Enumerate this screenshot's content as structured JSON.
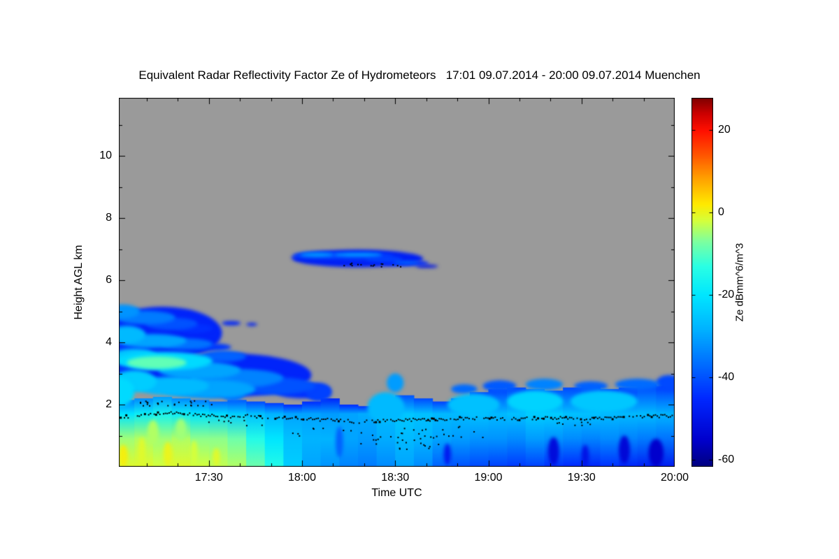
{
  "chart_data": {
    "type": "heatmap",
    "title": "Equivalent Radar Reflectivity Factor Ze of Hydrometeors   17:01 09.07.2014 - 20:00 09.07.2014 Muenchen",
    "location": "Muenchen",
    "time_range": "17:01 09.07.2014 - 20:00 09.07.2014",
    "xlabel": "Time UTC",
    "ylabel": "Height AGL km",
    "xlim_hours": [
      17.0167,
      20.0
    ],
    "ylim_km": [
      0,
      11.87
    ],
    "x_ticks": [
      {
        "hour": 17.5,
        "label": "17:30"
      },
      {
        "hour": 18.0,
        "label": "18:00"
      },
      {
        "hour": 18.5,
        "label": "18:30"
      },
      {
        "hour": 19.0,
        "label": "19:00"
      },
      {
        "hour": 19.5,
        "label": "19:30"
      },
      {
        "hour": 20.0,
        "label": "20:00"
      }
    ],
    "y_ticks": [
      2,
      4,
      6,
      8,
      10
    ],
    "colorbar": {
      "label": "Ze dBmm^6/m^3",
      "range": [
        -61.5,
        27.8
      ],
      "ticks": [
        20,
        0,
        -20,
        -40,
        -60
      ]
    },
    "no_data_color": "#9a9a9a",
    "colormap": [
      [
        -61.5,
        "#000080"
      ],
      [
        -55,
        "#0000cd"
      ],
      [
        -45,
        "#0028ff"
      ],
      [
        -36,
        "#0073ff"
      ],
      [
        -28,
        "#00b4ff"
      ],
      [
        -20,
        "#00e6ff"
      ],
      [
        -13,
        "#2affe4"
      ],
      [
        -7,
        "#7dffa0"
      ],
      [
        -2,
        "#d4ff3c"
      ],
      [
        2,
        "#ffea00"
      ],
      [
        8,
        "#ffa500"
      ],
      [
        14,
        "#ff5500"
      ],
      [
        20,
        "#ff0f00"
      ],
      [
        24,
        "#cc0000"
      ],
      [
        27.8,
        "#7f0000"
      ]
    ],
    "surface_band": {
      "profile_heights": [
        0.05,
        0.9,
        1.7
      ],
      "columns": [
        [
          17.0,
          2.15,
          -1,
          -5,
          -20
        ],
        [
          17.1,
          2.2,
          -1,
          -4,
          -18
        ],
        [
          17.2,
          2.25,
          -2,
          -5,
          -16
        ],
        [
          17.3,
          2.2,
          -1,
          -4,
          -18
        ],
        [
          17.4,
          2.15,
          -2,
          -6,
          -20
        ],
        [
          17.5,
          2.1,
          -3,
          -6,
          -22
        ],
        [
          17.6,
          2.15,
          -4,
          -8,
          -24
        ],
        [
          17.7,
          2.1,
          -8,
          -14,
          -26
        ],
        [
          17.8,
          2.05,
          -14,
          -20,
          -28
        ],
        [
          17.9,
          2.0,
          -24,
          -26,
          -30
        ],
        [
          18.0,
          2.1,
          -30,
          -28,
          -30
        ],
        [
          18.1,
          2.2,
          -32,
          -28,
          -31
        ],
        [
          18.2,
          2.0,
          -34,
          -30,
          -30
        ],
        [
          18.3,
          1.95,
          -35,
          -31,
          -29
        ],
        [
          18.4,
          2.0,
          -33,
          -29,
          -27
        ],
        [
          18.5,
          2.3,
          -30,
          -27,
          -25
        ],
        [
          18.6,
          2.2,
          -33,
          -28,
          -26
        ],
        [
          18.7,
          2.1,
          -38,
          -30,
          -27
        ],
        [
          18.8,
          2.2,
          -40,
          -31,
          -27
        ],
        [
          18.9,
          2.4,
          -41,
          -32,
          -26
        ],
        [
          19.0,
          2.5,
          -42,
          -32,
          -27
        ],
        [
          19.1,
          2.55,
          -43,
          -33,
          -26
        ],
        [
          19.2,
          2.5,
          -42,
          -31,
          -24
        ],
        [
          19.3,
          2.45,
          -44,
          -32,
          -24
        ],
        [
          19.4,
          2.55,
          -45,
          -33,
          -26
        ],
        [
          19.5,
          2.6,
          -46,
          -34,
          -26
        ],
        [
          19.6,
          2.5,
          -44,
          -33,
          -27
        ],
        [
          19.7,
          2.55,
          -46,
          -34,
          -27
        ],
        [
          19.8,
          2.65,
          -47,
          -35,
          -27
        ],
        [
          19.9,
          2.6,
          -48,
          -36,
          -28
        ],
        [
          20.0,
          2.55,
          -48,
          -36,
          -28
        ]
      ]
    },
    "blobs": [
      [
        17.25,
        4.3,
        0.32,
        0.85,
        -46
      ],
      [
        17.6,
        2.95,
        0.45,
        0.7,
        -46
      ],
      [
        17.05,
        3.5,
        0.14,
        1.1,
        -43
      ],
      [
        17.04,
        5.0,
        0.09,
        0.22,
        -32
      ],
      [
        17.16,
        4.8,
        0.16,
        0.22,
        -35
      ],
      [
        17.3,
        4.6,
        0.14,
        0.2,
        -40
      ],
      [
        17.42,
        4.45,
        0.1,
        0.15,
        -44
      ],
      [
        17.06,
        4.25,
        0.1,
        0.28,
        -27
      ],
      [
        17.2,
        4.05,
        0.18,
        0.22,
        -30
      ],
      [
        17.38,
        3.95,
        0.14,
        0.18,
        -36
      ],
      [
        17.52,
        3.85,
        0.1,
        0.12,
        -43
      ],
      [
        17.1,
        3.55,
        0.12,
        0.25,
        -25
      ],
      [
        17.26,
        3.4,
        0.26,
        0.3,
        -22
      ],
      [
        17.22,
        3.35,
        0.16,
        0.2,
        -9
      ],
      [
        17.45,
        3.1,
        0.22,
        0.28,
        -30
      ],
      [
        17.65,
        2.85,
        0.25,
        0.3,
        -34
      ],
      [
        17.85,
        2.6,
        0.22,
        0.28,
        -40
      ],
      [
        18.0,
        2.45,
        0.15,
        0.25,
        -44
      ],
      [
        17.1,
        2.75,
        0.12,
        0.35,
        -24
      ],
      [
        17.02,
        2.4,
        0.08,
        0.45,
        -22
      ],
      [
        17.3,
        2.6,
        0.2,
        0.3,
        -27
      ],
      [
        17.5,
        2.5,
        0.25,
        0.3,
        -30
      ],
      [
        17.58,
        3.55,
        0.12,
        0.18,
        -38
      ],
      [
        17.62,
        4.62,
        0.05,
        0.07,
        -46
      ],
      [
        17.73,
        4.58,
        0.03,
        0.05,
        -47
      ],
      [
        18.3,
        6.7,
        0.35,
        0.28,
        -47
      ],
      [
        18.08,
        6.8,
        0.13,
        0.12,
        -42
      ],
      [
        18.08,
        6.82,
        0.09,
        0.06,
        -30
      ],
      [
        17.99,
        6.73,
        0.05,
        0.05,
        -46
      ],
      [
        18.3,
        6.78,
        0.19,
        0.14,
        -43
      ],
      [
        18.3,
        6.82,
        0.13,
        0.05,
        -28
      ],
      [
        18.44,
        6.68,
        0.1,
        0.1,
        -42
      ],
      [
        18.56,
        6.55,
        0.12,
        0.09,
        -45
      ],
      [
        18.56,
        6.57,
        0.07,
        0.035,
        -33
      ],
      [
        18.67,
        6.45,
        0.06,
        0.05,
        -50
      ],
      [
        17.63,
        2.5,
        0.07,
        0.4,
        -36
      ],
      [
        18.09,
        2.4,
        0.07,
        0.3,
        -42
      ],
      [
        18.5,
        2.7,
        0.045,
        0.3,
        -31
      ],
      [
        18.87,
        2.5,
        0.07,
        0.15,
        -37
      ],
      [
        19.06,
        2.6,
        0.09,
        0.18,
        -39
      ],
      [
        19.3,
        2.65,
        0.1,
        0.18,
        -34
      ],
      [
        19.55,
        2.6,
        0.09,
        0.15,
        -38
      ],
      [
        19.8,
        2.65,
        0.12,
        0.18,
        -37
      ],
      [
        19.97,
        2.7,
        0.07,
        0.25,
        -41
      ],
      [
        18.92,
        2.0,
        0.14,
        0.35,
        -26
      ],
      [
        19.25,
        2.1,
        0.15,
        0.35,
        -23
      ],
      [
        19.62,
        2.1,
        0.18,
        0.35,
        -25
      ],
      [
        18.45,
        1.9,
        0.1,
        0.5,
        -27
      ],
      [
        18.78,
        0.4,
        0.02,
        0.35,
        -48
      ],
      [
        19.35,
        0.5,
        0.03,
        0.45,
        -52
      ],
      [
        19.52,
        0.35,
        0.02,
        0.35,
        -50
      ],
      [
        19.73,
        0.55,
        0.03,
        0.45,
        -53
      ],
      [
        19.9,
        0.45,
        0.04,
        0.45,
        -55
      ],
      [
        18.2,
        0.8,
        0.02,
        0.5,
        -38
      ],
      [
        17.04,
        0.35,
        0.025,
        0.35,
        1
      ],
      [
        17.14,
        0.5,
        0.02,
        0.45,
        -1
      ],
      [
        17.28,
        0.4,
        0.025,
        0.4,
        0
      ],
      [
        17.42,
        0.45,
        0.02,
        0.4,
        -2
      ],
      [
        17.54,
        0.3,
        0.02,
        0.3,
        -1
      ],
      [
        17.2,
        1.1,
        0.03,
        0.4,
        -4
      ],
      [
        17.35,
        1.2,
        0.03,
        0.35,
        -5
      ]
    ],
    "cloud_base_line": {
      "step_hours": 0.01,
      "jitter_km": 0.05,
      "points": [
        [
          17.02,
          1.6
        ],
        [
          17.1,
          1.63
        ],
        [
          17.2,
          1.7
        ],
        [
          17.3,
          1.74
        ],
        [
          17.4,
          1.68
        ],
        [
          17.5,
          1.65
        ],
        [
          17.6,
          1.6
        ],
        [
          17.7,
          1.64
        ],
        [
          17.8,
          1.6
        ],
        [
          17.9,
          1.57
        ],
        [
          18.0,
          1.55
        ],
        [
          18.1,
          1.52
        ],
        [
          18.2,
          1.48
        ],
        [
          18.3,
          1.45
        ],
        [
          18.42,
          1.47
        ],
        [
          18.55,
          1.5
        ],
        [
          18.7,
          1.52
        ],
        [
          18.85,
          1.55
        ],
        [
          19.0,
          1.57
        ],
        [
          19.1,
          1.52
        ],
        [
          19.2,
          1.55
        ],
        [
          19.35,
          1.57
        ],
        [
          19.5,
          1.53
        ],
        [
          19.65,
          1.57
        ],
        [
          19.8,
          1.62
        ],
        [
          19.95,
          1.63
        ],
        [
          20.0,
          1.62
        ]
      ]
    },
    "dot_clusters": [
      {
        "box": [
          17.12,
          17.52,
          1.95,
          2.12
        ],
        "n": 26
      },
      {
        "box": [
          17.5,
          17.8,
          1.25,
          1.5
        ],
        "n": 8
      },
      {
        "box": [
          17.95,
          18.3,
          0.9,
          1.3
        ],
        "n": 8
      },
      {
        "box": [
          18.3,
          18.75,
          0.55,
          1.1
        ],
        "n": 30
      },
      {
        "box": [
          18.55,
          19.0,
          0.9,
          1.3
        ],
        "n": 14
      },
      {
        "box": [
          19.3,
          19.55,
          1.3,
          1.45
        ],
        "n": 8
      },
      {
        "box": [
          18.2,
          18.56,
          6.43,
          6.55
        ],
        "n": 16
      }
    ]
  }
}
